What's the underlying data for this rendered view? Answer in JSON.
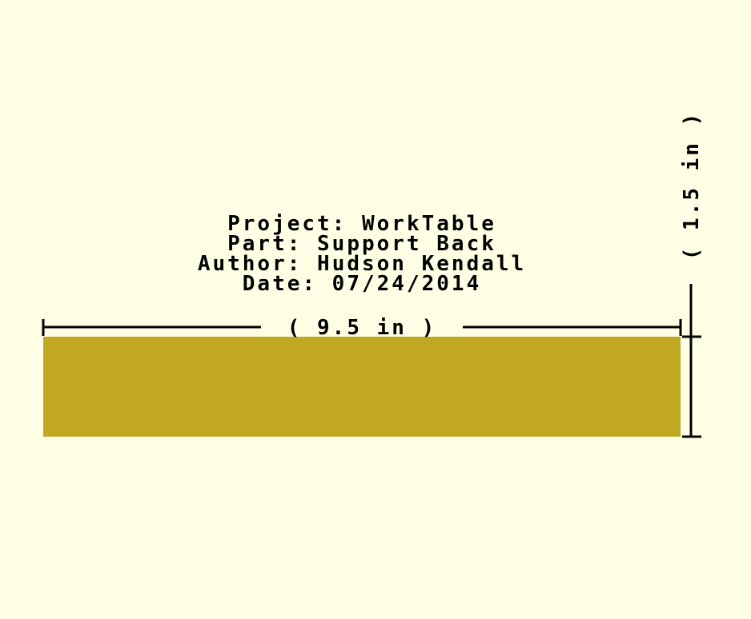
{
  "title_block": {
    "project": "Project: WorkTable",
    "part": "Part: Support Back",
    "author": "Author: Hudson Kendall",
    "date": "Date: 07/24/2014"
  },
  "dimensions": {
    "width_label": "( 9.5 in )",
    "height_label": "( 1.5 in )"
  },
  "part": {
    "width_in": 9.5,
    "height_in": 1.5
  },
  "colors": {
    "background": "#ffffe5",
    "part_fill": "#c0a823",
    "line": "#000000"
  }
}
